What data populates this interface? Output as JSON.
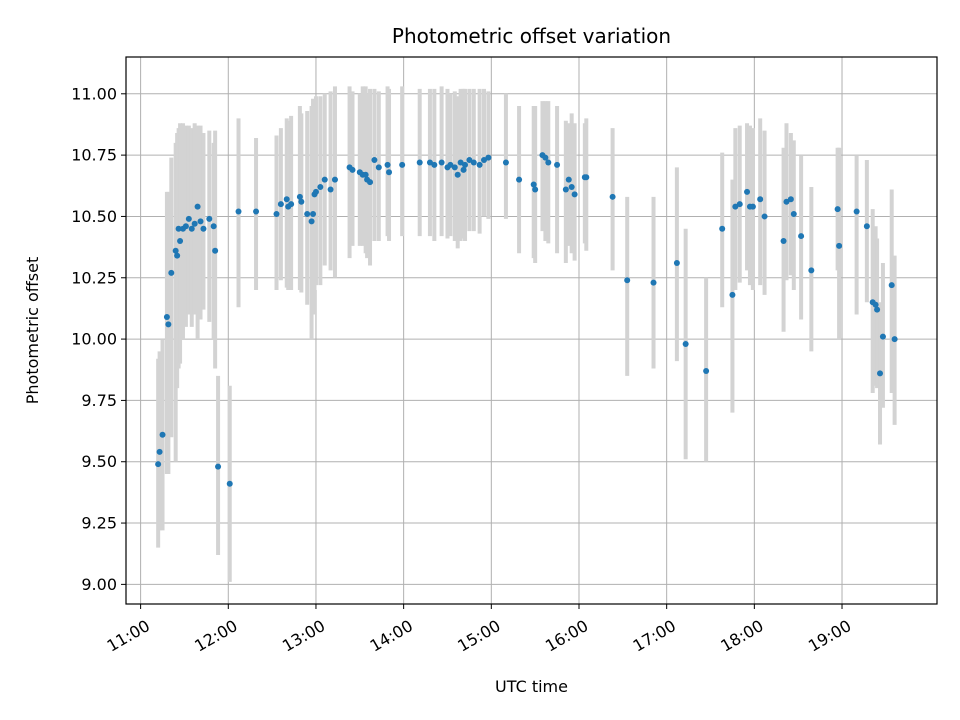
{
  "chart_data": {
    "type": "scatter",
    "title": "Photometric offset variation",
    "xlabel": "UTC time",
    "ylabel": "Photometric offset",
    "x_tick_labels": [
      "11:00",
      "12:00",
      "13:00",
      "14:00",
      "15:00",
      "16:00",
      "17:00",
      "18:00",
      "19:00"
    ],
    "y_tick_labels": [
      "9.00",
      "9.25",
      "9.50",
      "9.75",
      "10.00",
      "10.25",
      "10.50",
      "10.75",
      "11.00"
    ],
    "xlim": [
      "10:50",
      "20:05"
    ],
    "ylim": [
      8.92,
      11.15
    ],
    "grid": true,
    "colors": {
      "points": "#1f77b4",
      "errorbars": "#d3d3d3",
      "grid": "#b0b0b0"
    },
    "x": [
      "11:12",
      "11:13",
      "11:15",
      "11:18",
      "11:19",
      "11:21",
      "11:24",
      "11:25",
      "11:26",
      "11:27",
      "11:29",
      "11:31",
      "11:33",
      "11:35",
      "11:37",
      "11:39",
      "11:41",
      "11:43",
      "11:47",
      "11:50",
      "11:51",
      "11:53",
      "12:01",
      "12:07",
      "12:19",
      "12:33",
      "12:36",
      "12:40",
      "12:41",
      "12:43",
      "12:49",
      "12:50",
      "12:54",
      "12:57",
      "12:58",
      "12:59",
      "13:00",
      "13:03",
      "13:06",
      "13:10",
      "13:13",
      "13:23",
      "13:25",
      "13:30",
      "13:32",
      "13:34",
      "13:35",
      "13:37",
      "13:40",
      "13:43",
      "13:49",
      "13:50",
      "13:59",
      "14:11",
      "14:18",
      "14:21",
      "14:26",
      "14:30",
      "14:32",
      "14:35",
      "14:37",
      "14:39",
      "14:41",
      "14:42",
      "14:45",
      "14:48",
      "14:52",
      "14:55",
      "14:58",
      "15:10",
      "15:19",
      "15:29",
      "15:30",
      "15:35",
      "15:37",
      "15:39",
      "15:45",
      "15:51",
      "15:53",
      "15:55",
      "15:57",
      "16:04",
      "16:05",
      "16:23",
      "16:33",
      "16:51",
      "17:07",
      "17:13",
      "17:27",
      "17:38",
      "17:45",
      "17:47",
      "17:50",
      "17:55",
      "17:57",
      "17:59",
      "18:04",
      "18:07",
      "18:20",
      "18:22",
      "18:25",
      "18:27",
      "18:32",
      "18:39",
      "18:57",
      "18:58",
      "19:10",
      "19:17",
      "19:21",
      "19:23",
      "19:24",
      "19:26",
      "19:28",
      "19:34",
      "19:36"
    ],
    "y": [
      9.49,
      9.54,
      9.61,
      10.09,
      10.06,
      10.27,
      10.36,
      10.34,
      10.45,
      10.4,
      10.45,
      10.46,
      10.49,
      10.45,
      10.47,
      10.54,
      10.48,
      10.45,
      10.49,
      10.46,
      10.36,
      9.48,
      9.41,
      10.52,
      10.52,
      10.51,
      10.55,
      10.57,
      10.54,
      10.55,
      10.58,
      10.56,
      10.51,
      10.48,
      10.51,
      10.59,
      10.6,
      10.62,
      10.65,
      10.61,
      10.65,
      10.7,
      10.69,
      10.68,
      10.67,
      10.67,
      10.65,
      10.64,
      10.73,
      10.7,
      10.71,
      10.68,
      10.71,
      10.72,
      10.72,
      10.71,
      10.72,
      10.7,
      10.71,
      10.7,
      10.67,
      10.72,
      10.69,
      10.71,
      10.73,
      10.72,
      10.71,
      10.73,
      10.74,
      10.72,
      10.65,
      10.63,
      10.61,
      10.75,
      10.74,
      10.72,
      10.71,
      10.61,
      10.65,
      10.62,
      10.59,
      10.66,
      10.66,
      10.58,
      10.24,
      10.23,
      10.31,
      9.98,
      9.87,
      10.45,
      10.18,
      10.54,
      10.55,
      10.6,
      10.54,
      10.54,
      10.57,
      10.5,
      10.4,
      10.56,
      10.57,
      10.51,
      10.42,
      10.28,
      10.53,
      10.38,
      10.52,
      10.46,
      10.15,
      10.14,
      10.12,
      9.86,
      10.01,
      10.22,
      10.0
    ],
    "err_low": [
      9.15,
      9.22,
      9.22,
      9.45,
      9.45,
      9.6,
      9.5,
      9.8,
      9.88,
      9.9,
      10.0,
      10.05,
      10.1,
      10.05,
      10.1,
      10.0,
      10.08,
      10.12,
      10.07,
      10.0,
      9.88,
      9.12,
      9.01,
      10.13,
      10.2,
      10.2,
      10.24,
      10.21,
      10.2,
      10.2,
      10.2,
      10.19,
      10.14,
      10.0,
      10.1,
      10.2,
      10.22,
      10.22,
      10.3,
      10.28,
      10.25,
      10.33,
      10.38,
      10.38,
      10.38,
      10.35,
      10.33,
      10.3,
      10.4,
      10.4,
      10.42,
      10.4,
      10.42,
      10.42,
      10.42,
      10.4,
      10.42,
      10.41,
      10.42,
      10.4,
      10.37,
      10.4,
      10.41,
      10.4,
      10.44,
      10.44,
      10.43,
      10.5,
      10.49,
      10.49,
      10.35,
      10.33,
      10.31,
      10.44,
      10.4,
      10.39,
      10.35,
      10.31,
      10.38,
      10.35,
      10.32,
      10.39,
      10.36,
      10.28,
      9.85,
      9.88,
      9.91,
      9.51,
      9.5,
      10.13,
      9.7,
      10.2,
      10.23,
      10.28,
      10.22,
      10.2,
      10.22,
      10.18,
      10.03,
      10.24,
      10.26,
      10.2,
      10.08,
      9.95,
      10.28,
      10.0,
      10.1,
      10.15,
      9.78,
      9.81,
      9.8,
      9.57,
      9.72,
      9.78,
      9.65
    ],
    "err_high": [
      9.92,
      9.95,
      10.0,
      10.6,
      10.6,
      10.74,
      10.8,
      10.84,
      10.86,
      10.88,
      10.88,
      10.87,
      10.87,
      10.86,
      10.88,
      10.87,
      10.87,
      10.84,
      10.85,
      10.8,
      10.85,
      9.85,
      9.81,
      10.9,
      10.82,
      10.83,
      10.86,
      10.9,
      10.89,
      10.91,
      10.95,
      10.92,
      10.93,
      10.95,
      10.98,
      10.97,
      10.99,
      10.99,
      11.0,
      11.01,
      11.03,
      11.03,
      11.01,
      11.0,
      11.03,
      11.03,
      11.0,
      11.02,
      11.02,
      11.01,
      11.03,
      11.02,
      11.03,
      11.02,
      11.02,
      11.02,
      11.03,
      11.02,
      11.0,
      11.01,
      10.99,
      11.02,
      11.02,
      11.02,
      11.02,
      11.02,
      11.02,
      11.02,
      11.01,
      11.0,
      10.95,
      10.95,
      10.95,
      10.97,
      10.97,
      10.97,
      10.95,
      10.89,
      10.88,
      10.92,
      10.88,
      10.88,
      10.9,
      10.86,
      10.58,
      10.58,
      10.7,
      10.45,
      10.25,
      10.76,
      10.65,
      10.86,
      10.87,
      10.88,
      10.87,
      10.86,
      10.9,
      10.85,
      10.78,
      10.88,
      10.84,
      10.81,
      10.75,
      10.62,
      10.78,
      10.78,
      10.75,
      10.73,
      10.53,
      10.46,
      10.41,
      10.15,
      10.31,
      10.61,
      10.34
    ]
  }
}
